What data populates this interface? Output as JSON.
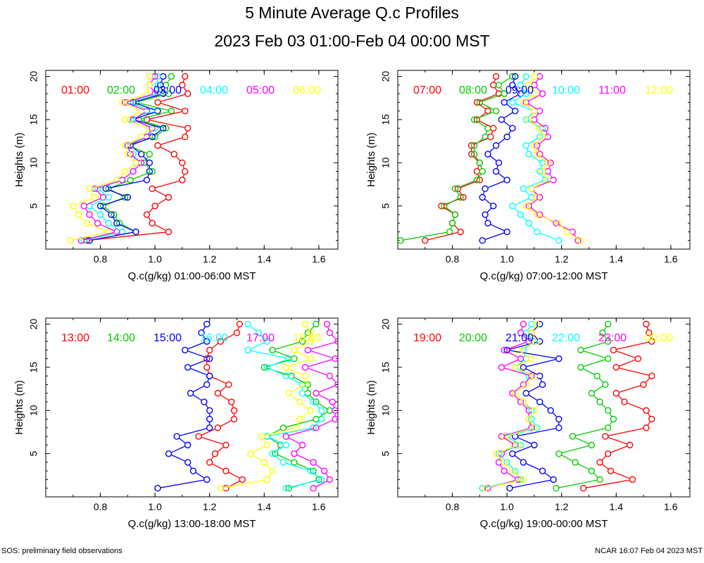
{
  "title": "5 Minute Average Q.c Profiles",
  "subtitle": "2023 Feb 03 01:00-Feb 04 00:00 MST",
  "footer_left": "SOS: preliminary field observations",
  "footer_right": "NCAR 16:07 Feb 04 2023 MST",
  "colors": [
    "#ff0000",
    "#00cc00",
    "#0000ff",
    "#00ffff",
    "#ff00ff",
    "#ffff00"
  ],
  "chart_data": [
    {
      "type": "line",
      "xlabel": "Q.c(g/kg) 01:00-06:00 MST",
      "ylabel": "Heights (m)",
      "xlim": [
        0.6,
        1.67
      ],
      "ylim": [
        0,
        20.7
      ],
      "xticks": [
        "0.8",
        "1.0",
        "1.2",
        "1.4",
        "1.6"
      ],
      "yticks": [
        "5",
        "10",
        "15",
        "20"
      ],
      "heights": [
        1,
        2,
        3,
        4,
        5,
        6,
        7,
        8,
        9,
        10,
        11,
        12,
        13,
        14,
        15,
        16,
        17,
        18,
        19,
        20
      ],
      "series": [
        {
          "name": "01:00",
          "values": [
            0.75,
            1.05,
            0.99,
            0.97,
            1.0,
            1.05,
            0.99,
            1.1,
            1.11,
            1.1,
            1.07,
            1.01,
            1.11,
            1.12,
            0.97,
            1.11,
            1.01,
            1.12,
            1.1,
            1.11
          ]
        },
        {
          "name": "02:00",
          "values": [
            0.76,
            0.93,
            0.87,
            0.85,
            0.81,
            0.89,
            0.83,
            0.91,
            0.99,
            0.96,
            0.98,
            0.9,
            1.0,
            1.04,
            0.94,
            1.06,
            0.93,
            1.05,
            1.04,
            1.06
          ]
        },
        {
          "name": "03:00",
          "values": [
            0.76,
            0.93,
            0.86,
            0.84,
            0.8,
            0.9,
            0.82,
            0.97,
            0.98,
            0.98,
            0.95,
            0.91,
            0.99,
            1.03,
            0.92,
            1.01,
            0.92,
            1.03,
            1.02,
            1.03
          ]
        },
        {
          "name": "04:00",
          "values": [
            0.74,
            0.88,
            0.83,
            0.8,
            0.76,
            0.83,
            0.79,
            0.88,
            0.92,
            0.93,
            0.92,
            0.89,
            0.97,
            1.0,
            0.91,
            0.99,
            0.9,
            1.01,
            1.01,
            1.01
          ]
        },
        {
          "name": "05:00",
          "values": [
            0.73,
            0.86,
            0.79,
            0.76,
            0.74,
            0.81,
            0.78,
            0.88,
            0.92,
            0.95,
            0.91,
            0.9,
            0.97,
            0.99,
            0.92,
            0.97,
            0.89,
            1.0,
            0.98,
            1.0
          ]
        },
        {
          "name": "06:00",
          "values": [
            0.69,
            0.83,
            0.75,
            0.72,
            0.7,
            0.78,
            0.76,
            0.86,
            0.89,
            0.93,
            0.9,
            0.89,
            0.95,
            0.98,
            0.89,
            0.95,
            0.88,
            0.97,
            0.98,
            0.98
          ]
        }
      ]
    },
    {
      "type": "line",
      "xlabel": "Q.c(g/kg) 07:00-12:00 MST",
      "ylabel": "Heights (m)",
      "xlim": [
        0.6,
        1.67
      ],
      "ylim": [
        0,
        20.7
      ],
      "xticks": [
        "0.8",
        "1.0",
        "1.2",
        "1.4",
        "1.6"
      ],
      "yticks": [
        "5",
        "10",
        "15",
        "20"
      ],
      "heights": [
        1,
        2,
        3,
        4,
        5,
        6,
        7,
        8,
        9,
        10,
        11,
        12,
        13,
        14,
        15,
        16,
        17,
        18,
        19,
        20
      ],
      "series": [
        {
          "name": "07:00",
          "values": [
            0.7,
            0.83,
            0.8,
            0.81,
            0.76,
            0.84,
            0.82,
            0.9,
            0.89,
            0.9,
            0.87,
            0.87,
            0.94,
            0.95,
            0.89,
            0.93,
            0.89,
            0.97,
            0.95,
            0.96
          ]
        },
        {
          "name": "08:00",
          "values": [
            0.61,
            0.79,
            0.8,
            0.81,
            0.77,
            0.83,
            0.81,
            0.89,
            0.91,
            0.9,
            0.88,
            0.88,
            0.92,
            0.93,
            0.88,
            0.96,
            0.9,
            0.99,
            0.97,
            1.02
          ]
        },
        {
          "name": "09:00",
          "values": [
            0.91,
            1.0,
            0.93,
            0.92,
            0.95,
            0.91,
            0.92,
            1.0,
            0.96,
            0.97,
            0.93,
            0.96,
            1.0,
            1.02,
            0.98,
            1.03,
            0.99,
            1.05,
            1.02,
            1.03
          ]
        },
        {
          "name": "10:00",
          "values": [
            1.19,
            1.11,
            1.08,
            1.05,
            1.02,
            1.09,
            1.06,
            1.14,
            1.12,
            1.13,
            1.08,
            1.07,
            1.12,
            1.13,
            1.07,
            1.1,
            1.02,
            1.07,
            1.05,
            1.07
          ]
        },
        {
          "name": "11:00",
          "values": [
            1.26,
            1.24,
            1.18,
            1.12,
            1.08,
            1.12,
            1.09,
            1.17,
            1.15,
            1.16,
            1.12,
            1.11,
            1.15,
            1.14,
            1.1,
            1.12,
            1.07,
            1.13,
            1.1,
            1.12
          ]
        },
        {
          "name": "12:00",
          "values": [
            1.27,
            1.22,
            1.19,
            1.11,
            1.07,
            1.11,
            1.09,
            1.15,
            1.13,
            1.15,
            1.11,
            1.1,
            1.13,
            1.12,
            1.08,
            1.1,
            1.06,
            1.1,
            1.08,
            1.1
          ]
        }
      ]
    },
    {
      "type": "line",
      "xlabel": "Q.c(g/kg) 13:00-18:00 MST",
      "ylabel": "Heights (m)",
      "xlim": [
        0.6,
        1.67
      ],
      "ylim": [
        0,
        20.7
      ],
      "xticks": [
        "0.8",
        "1.0",
        "1.2",
        "1.4",
        "1.6"
      ],
      "yticks": [
        "5",
        "10",
        "15",
        "20"
      ],
      "heights": [
        1,
        2,
        3,
        4,
        5,
        6,
        7,
        8,
        9,
        10,
        11,
        12,
        13,
        14,
        15,
        16,
        17,
        18,
        19,
        20
      ],
      "series": [
        {
          "name": "13:00",
          "values": [
            1.26,
            1.32,
            1.26,
            1.2,
            1.22,
            1.26,
            1.16,
            1.23,
            1.29,
            1.29,
            1.28,
            1.23,
            1.27,
            1.2,
            1.19,
            1.19,
            1.2,
            1.24,
            1.3,
            1.31
          ]
        },
        {
          "name": "14:00",
          "values": [
            1.49,
            1.6,
            1.58,
            1.51,
            1.44,
            1.46,
            1.41,
            1.47,
            1.59,
            1.64,
            1.59,
            1.56,
            1.56,
            1.5,
            1.4,
            1.51,
            1.43,
            1.54,
            1.56,
            1.59
          ]
        },
        {
          "name": "15:00",
          "values": [
            1.01,
            1.19,
            1.14,
            1.12,
            1.05,
            1.12,
            1.08,
            1.2,
            1.2,
            1.2,
            1.18,
            1.13,
            1.19,
            1.2,
            1.12,
            1.2,
            1.11,
            1.19,
            1.17,
            1.19
          ]
        },
        {
          "name": "16:00",
          "values": [
            1.48,
            1.61,
            1.57,
            1.47,
            1.43,
            1.48,
            1.41,
            1.58,
            1.61,
            1.61,
            1.58,
            1.54,
            1.54,
            1.48,
            1.41,
            1.49,
            1.34,
            1.41,
            1.38,
            1.34
          ]
        },
        {
          "name": "17:00",
          "values": [
            1.58,
            1.64,
            1.62,
            1.58,
            1.51,
            1.54,
            1.48,
            1.59,
            1.66,
            1.66,
            1.65,
            1.59,
            1.67,
            1.64,
            1.55,
            1.66,
            1.56,
            1.67,
            1.64,
            1.63
          ]
        },
        {
          "name": "18:00",
          "values": [
            1.24,
            1.41,
            1.43,
            1.4,
            1.35,
            1.41,
            1.39,
            1.52,
            1.53,
            1.57,
            1.53,
            1.49,
            1.55,
            1.55,
            1.48,
            1.57,
            1.51,
            1.57,
            1.57,
            1.55
          ]
        }
      ]
    },
    {
      "type": "line",
      "xlabel": "Q.c(g/kg) 19:00-00:00 MST",
      "ylabel": "Heights (m)",
      "xlim": [
        0.6,
        1.67
      ],
      "ylim": [
        0,
        20.7
      ],
      "xticks": [
        "0.8",
        "1.0",
        "1.2",
        "1.4",
        "1.6"
      ],
      "yticks": [
        "5",
        "10",
        "15",
        "20"
      ],
      "heights": [
        1,
        2,
        3,
        4,
        5,
        6,
        7,
        8,
        9,
        10,
        11,
        12,
        13,
        14,
        15,
        16,
        17,
        18,
        19,
        20
      ],
      "series": [
        {
          "name": "19:00",
          "values": [
            1.28,
            1.46,
            1.38,
            1.34,
            1.37,
            1.45,
            1.36,
            1.51,
            1.53,
            1.51,
            1.43,
            1.4,
            1.5,
            1.53,
            1.4,
            1.48,
            1.39,
            1.53,
            1.52,
            1.51
          ]
        },
        {
          "name": "20:00",
          "values": [
            1.18,
            1.34,
            1.31,
            1.25,
            1.19,
            1.31,
            1.24,
            1.37,
            1.39,
            1.37,
            1.34,
            1.31,
            1.36,
            1.33,
            1.27,
            1.37,
            1.27,
            1.37,
            1.35,
            1.37
          ]
        },
        {
          "name": "21:00",
          "values": [
            1.01,
            1.17,
            1.13,
            1.06,
            1.02,
            1.1,
            1.03,
            1.19,
            1.19,
            1.16,
            1.12,
            1.07,
            1.13,
            1.12,
            1.06,
            1.19,
            1.0,
            1.12,
            1.09,
            1.12
          ]
        },
        {
          "name": "22:00",
          "values": [
            0.91,
            1.05,
            1.03,
            1.0,
            0.97,
            1.05,
            1.0,
            1.11,
            1.09,
            1.09,
            1.06,
            1.03,
            1.07,
            1.08,
            1.03,
            1.07,
            1.06,
            1.1,
            1.07,
            1.09
          ]
        },
        {
          "name": "23:00",
          "values": [
            0.93,
            1.04,
            0.99,
            0.97,
            0.98,
            1.03,
            0.98,
            1.09,
            1.08,
            1.08,
            1.05,
            1.02,
            1.06,
            1.09,
            0.98,
            1.05,
            0.99,
            1.08,
            1.05,
            1.06
          ]
        },
        {
          "name": "00:00",
          "values": [
            0.92,
            1.06,
            1.02,
            0.99,
            0.96,
            1.04,
            0.99,
            1.1,
            1.08,
            1.1,
            1.06,
            1.03,
            1.07,
            1.1,
            1.03,
            1.09,
            1.04,
            1.11,
            1.09,
            1.11
          ]
        }
      ]
    }
  ]
}
